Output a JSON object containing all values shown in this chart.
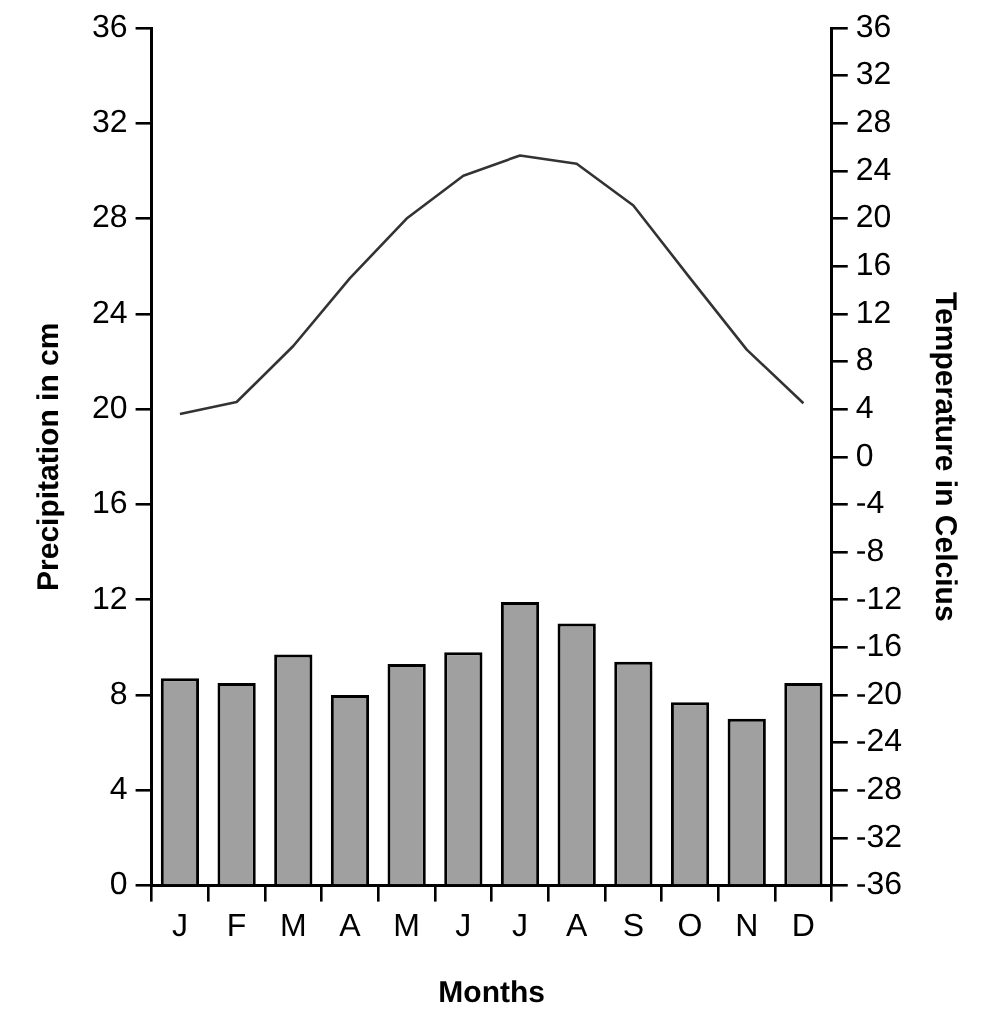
{
  "chart_data": {
    "type": "bar",
    "xlabel": "Months",
    "ylabel": "Precipitation in cm",
    "y2label": "Temperature in Celcius",
    "categories": [
      "J",
      "F",
      "M",
      "A",
      "M",
      "J",
      "J",
      "A",
      "S",
      "O",
      "N",
      "D"
    ],
    "series": [
      {
        "color": "#a0a0a0",
        "values": [
          8.7,
          8.5,
          9.7,
          8.0,
          9.3,
          9.8,
          11.9,
          11.0,
          9.4,
          7.7,
          7.0,
          8.5
        ]
      },
      {
        "type": "line",
        "axis": "y2",
        "color": "#333333",
        "values": [
          3.6,
          4.6,
          9.3,
          15,
          20,
          23.6,
          25.3,
          24.6,
          21.1,
          15,
          9,
          4.5
        ]
      }
    ],
    "ylim": [
      0,
      36
    ],
    "yticks": [
      0,
      4,
      8,
      12,
      16,
      20,
      24,
      28,
      32,
      36
    ],
    "y2lim": [
      -36,
      36
    ],
    "y2ticks": [
      -36,
      -32,
      -28,
      -24,
      -20,
      -16,
      -12,
      -8,
      -4,
      0,
      4,
      8,
      12,
      16,
      20,
      24,
      28,
      32,
      36
    ],
    "grid": false,
    "legend": false,
    "marker": "none",
    "line_style": "solid"
  }
}
